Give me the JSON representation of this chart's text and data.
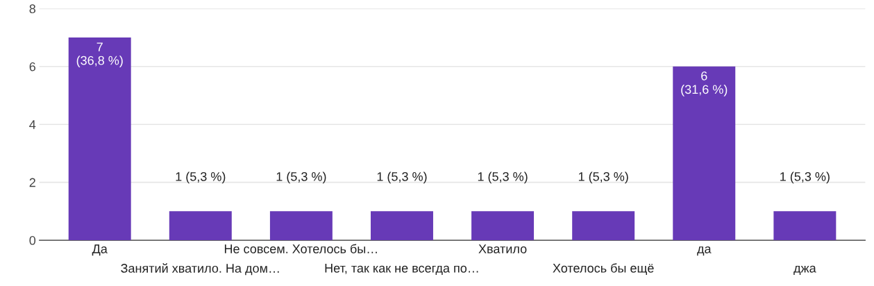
{
  "chart_data": {
    "type": "bar",
    "categories": [
      "Да",
      "Занятий хватило. На дом…",
      "Не совсем. Хотелось бы…",
      "Нет, так как не всегда по…",
      "Хватило",
      "Хотелось бы ещё",
      "да",
      "джа"
    ],
    "values": [
      7,
      1,
      1,
      1,
      1,
      1,
      6,
      1
    ],
    "value_labels": [
      "7\n(36,8 %)",
      "1 (5,3 %)",
      "1 (5,3 %)",
      "1 (5,3 %)",
      "1 (5,3 %)",
      "1 (5,3 %)",
      "6\n(31,6 %)",
      "1 (5,3 %)"
    ],
    "color": "#673ab7",
    "ylim": [
      0,
      8
    ],
    "yticks": [
      0,
      2,
      4,
      6,
      8
    ],
    "grid": "y"
  }
}
